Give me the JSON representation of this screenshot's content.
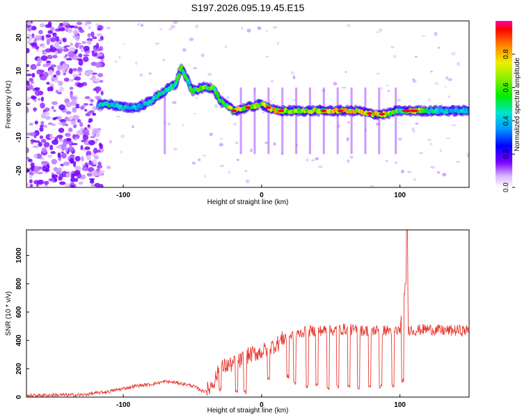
{
  "title": "S197.2026.095.19.45.E15",
  "chart_data": [
    {
      "type": "heatmap",
      "xlabel": "Height of straight line (km)",
      "ylabel": "Frequency (Hz)",
      "xlim": [
        -170,
        150
      ],
      "ylim": [
        -25,
        25
      ],
      "x_ticks": [
        -100,
        0,
        100
      ],
      "y_ticks": [
        20,
        10,
        0,
        -10,
        -20
      ],
      "x_tick_labels": [
        "-100",
        "0",
        "100"
      ],
      "y_tick_labels": [
        "20",
        "10",
        "0",
        "-10",
        "-20"
      ],
      "colorbar": {
        "label": "Normalized spectral amplitude",
        "range": [
          0,
          1
        ],
        "ticks": [
          0.0,
          0.2,
          0.4,
          0.6,
          0.8
        ],
        "tick_labels": [
          "0.0",
          "0.2",
          "0.4",
          "0.6",
          "0.8"
        ]
      },
      "ridge": {
        "x": [
          -118,
          -110,
          -100,
          -90,
          -80,
          -70,
          -62,
          -58,
          -50,
          -42,
          -35,
          -30,
          -20,
          -10,
          0,
          10,
          20,
          30,
          40,
          50,
          60,
          70,
          80,
          90,
          98,
          100,
          110,
          120,
          130,
          150
        ],
        "freq": [
          0,
          0,
          -1,
          -1,
          1,
          4,
          6,
          11,
          4,
          5,
          5,
          1,
          -2,
          -1,
          0,
          -2,
          -2,
          -2,
          -2,
          -2,
          -2,
          -2,
          -3,
          -3,
          -2,
          -2,
          -2,
          -2,
          -2,
          -2
        ],
        "amp": [
          0.5,
          0.55,
          0.5,
          0.5,
          0.5,
          0.6,
          0.65,
          0.6,
          0.6,
          0.7,
          0.7,
          0.6,
          0.8,
          0.85,
          0.8,
          0.9,
          0.75,
          0.8,
          0.8,
          0.85,
          0.9,
          0.85,
          0.9,
          0.85,
          0.7,
          0.5,
          0.95,
          0.55,
          0.5,
          0.5
        ]
      }
    },
    {
      "type": "line",
      "xlabel": "Height of straight line (km)",
      "ylabel": "SNR (10 * v/v)",
      "xlim": [
        -170,
        150
      ],
      "ylim": [
        0,
        1180
      ],
      "x_ticks": [
        -100,
        0,
        100
      ],
      "y_ticks": [
        0,
        200,
        400,
        600,
        800,
        1000
      ],
      "x_tick_labels": [
        "-100",
        "0",
        "100"
      ],
      "y_tick_labels": [
        "0",
        "200",
        "400",
        "600",
        "800",
        "1000"
      ],
      "series": [
        {
          "name": "SNR",
          "color": "#e8392f",
          "x": [
            -170,
            -150,
            -130,
            -110,
            -100,
            -90,
            -80,
            -70,
            -60,
            -50,
            -42,
            -38,
            -34,
            -30,
            -26,
            -22,
            -18,
            -15,
            -12,
            -8,
            -4,
            0,
            4,
            8,
            12,
            16,
            20,
            25,
            30,
            40,
            50,
            60,
            70,
            80,
            90,
            100,
            104,
            105,
            106,
            110,
            120,
            130,
            140,
            150
          ],
          "y": [
            10,
            15,
            15,
            40,
            60,
            80,
            90,
            110,
            100,
            80,
            40,
            60,
            120,
            200,
            220,
            230,
            240,
            260,
            280,
            300,
            310,
            320,
            340,
            360,
            380,
            420,
            430,
            440,
            460,
            470,
            470,
            480,
            470,
            470,
            470,
            470,
            800,
            1180,
            480,
            470,
            480,
            470,
            470,
            470
          ]
        }
      ],
      "dropouts": [
        {
          "x": -30,
          "y": 40
        },
        {
          "x": -18,
          "y": 20
        },
        {
          "x": -12,
          "y": 20
        },
        {
          "x": 5,
          "y": 110
        },
        {
          "x": 19,
          "y": 130
        },
        {
          "x": 24,
          "y": 80
        },
        {
          "x": 33,
          "y": 60
        },
        {
          "x": 40,
          "y": 70
        },
        {
          "x": 48,
          "y": 50
        },
        {
          "x": 55,
          "y": 60
        },
        {
          "x": 63,
          "y": 60
        },
        {
          "x": 70,
          "y": 50
        },
        {
          "x": 78,
          "y": 60
        },
        {
          "x": 86,
          "y": 60
        },
        {
          "x": 95,
          "y": 60
        },
        {
          "x": 102,
          "y": 100
        }
      ]
    }
  ]
}
